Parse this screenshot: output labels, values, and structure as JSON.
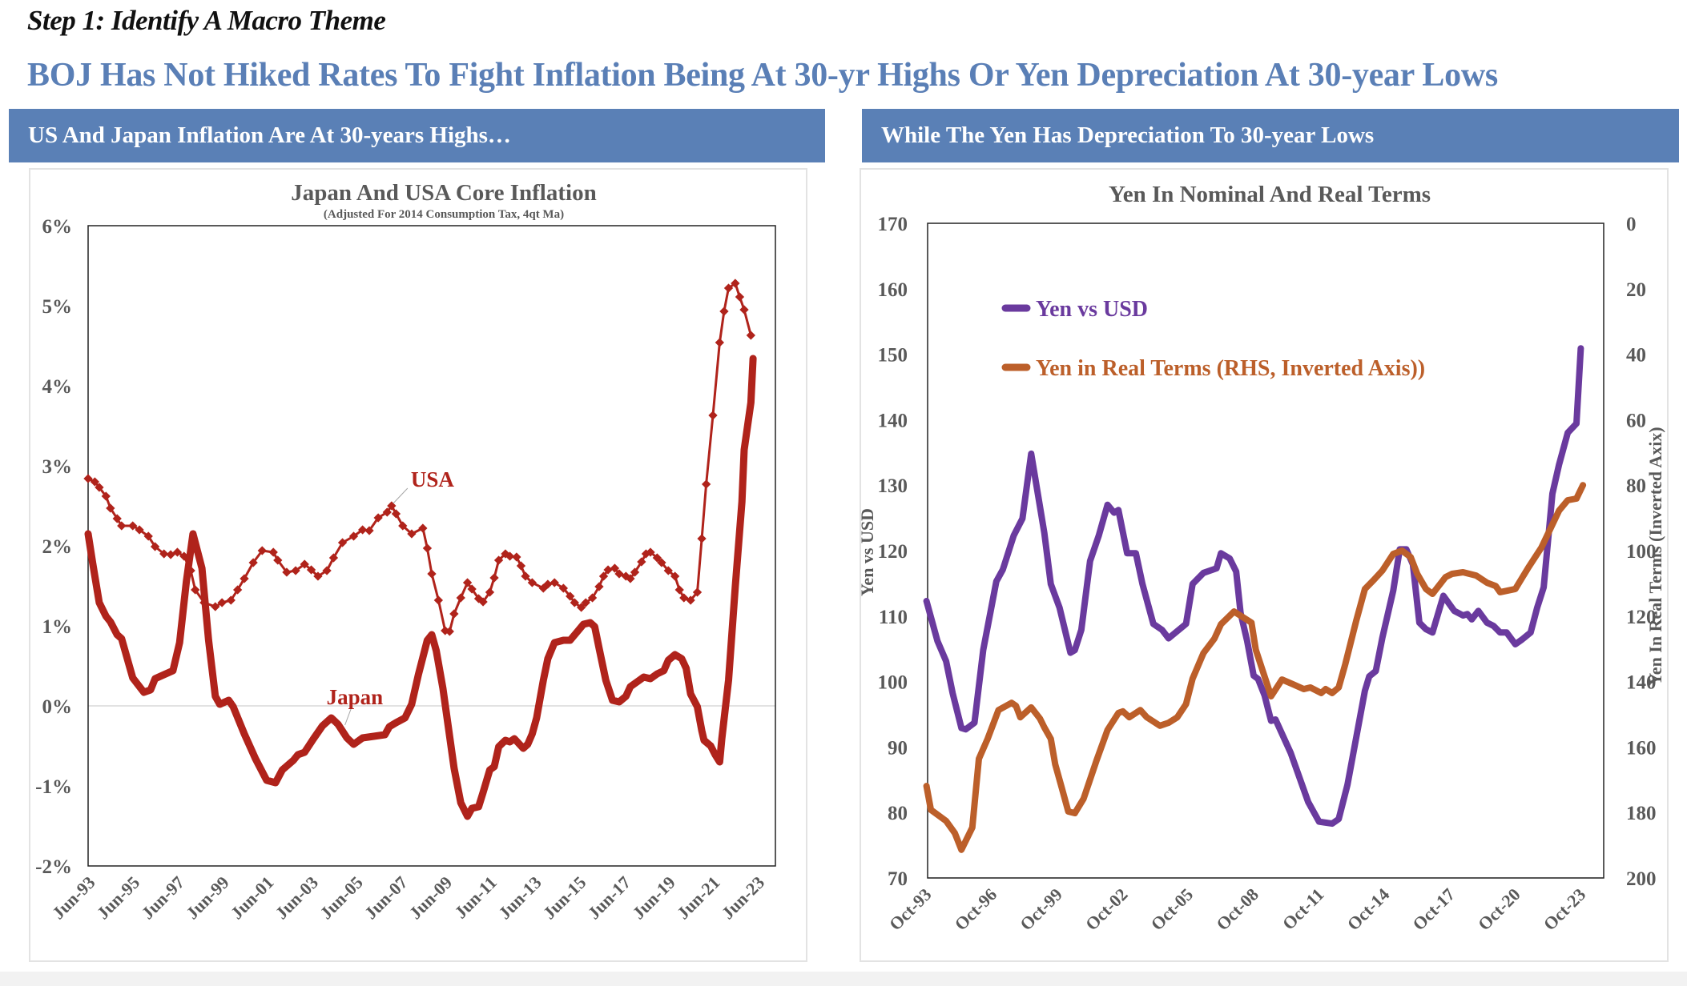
{
  "header": {
    "step_title": "Step 1: Identify A Macro Theme",
    "main_title": "BOJ Has Not Hiked Rates To Fight Inflation Being At 30-yr Highs Or Yen Depreciation At 30-year Lows"
  },
  "panels": {
    "left_banner": "US And Japan Inflation Are At 30-years Highs…",
    "right_banner": "While The Yen Has Depreciation To 30-year Lows"
  },
  "colors": {
    "banner": "#5a80b6",
    "title_blue": "#5a7fb6",
    "inflation_red": "#b0231b",
    "yen_purple": "#6a3a9e",
    "yen_orange": "#bc5f2a",
    "axis_text": "#595959"
  },
  "chart_data": [
    {
      "type": "line",
      "title": "Japan And USA Core Inflation",
      "subtitle": "(Adjusted For 2014 Consumption Tax, 4qt Ma)",
      "xlabel": "",
      "ylabel": "",
      "x_unit": "decimal year",
      "xlim": [
        1993.5,
        2024.3
      ],
      "ylim": [
        -2,
        6
      ],
      "y_ticks": [
        -2,
        -1,
        0,
        1,
        2,
        3,
        4,
        5,
        6
      ],
      "y_tick_labels": [
        "-2%",
        "-1%",
        "0%",
        "1%",
        "2%",
        "3%",
        "4%",
        "5%",
        "6%"
      ],
      "x_ticks": [
        1993.5,
        1995.5,
        1997.5,
        1999.5,
        2001.5,
        2003.5,
        2005.5,
        2007.5,
        2009.5,
        2011.5,
        2013.5,
        2015.5,
        2017.5,
        2019.5,
        2021.5,
        2023.5
      ],
      "x_tick_labels": [
        "Jun-93",
        "Jun-95",
        "Jun-97",
        "Jun-99",
        "Jun-01",
        "Jun-03",
        "Jun-05",
        "Jun-07",
        "Jun-09",
        "Jun-11",
        "Jun-13",
        "Jun-15",
        "Jun-17",
        "Jun-19",
        "Jun-21",
        "Jun-23"
      ],
      "grid": false,
      "zero_line": true,
      "legend": "none",
      "annotations": [
        {
          "text": "USA",
          "series": "USA",
          "at_x": 2007.1
        },
        {
          "text": "Japan",
          "series": "Japan",
          "at_x": 2005.0
        }
      ],
      "series": [
        {
          "name": "USA",
          "color": "#b0231b",
          "marker": "diamond",
          "x": [
            1993.5,
            1993.8,
            1994.0,
            1994.3,
            1994.5,
            1994.8,
            1995.0,
            1995.5,
            1995.8,
            1996.2,
            1996.5,
            1996.9,
            1997.2,
            1997.5,
            1997.8,
            1998.1,
            1998.3,
            1998.7,
            1999.2,
            1999.5,
            1999.9,
            2000.2,
            2000.5,
            2000.9,
            2001.3,
            2001.8,
            2002.0,
            2002.4,
            2002.8,
            2003.2,
            2003.5,
            2003.8,
            2004.2,
            2004.5,
            2004.9,
            2005.4,
            2005.8,
            2006.1,
            2006.5,
            2006.9,
            2007.1,
            2007.3,
            2007.6,
            2008.0,
            2008.5,
            2008.7,
            2008.9,
            2009.2,
            2009.5,
            2009.7,
            2009.9,
            2010.2,
            2010.5,
            2010.7,
            2011.0,
            2011.2,
            2011.5,
            2011.7,
            2011.9,
            2012.2,
            2012.4,
            2012.7,
            2012.9,
            2013.1,
            2013.4,
            2013.9,
            2014.1,
            2014.4,
            2014.8,
            2015.1,
            2015.3,
            2015.6,
            2015.8,
            2016.1,
            2016.4,
            2016.6,
            2016.8,
            2017.1,
            2017.3,
            2017.6,
            2017.8,
            2018.0,
            2018.3,
            2018.5,
            2018.7,
            2019.0,
            2019.2,
            2019.5,
            2019.8,
            2020.0,
            2020.2,
            2020.5,
            2020.8,
            2021.0,
            2021.2,
            2021.5,
            2021.8,
            2022.0,
            2022.2,
            2022.5,
            2022.7,
            2022.9,
            2023.2
          ],
          "values": [
            2.84,
            2.8,
            2.73,
            2.62,
            2.47,
            2.34,
            2.25,
            2.25,
            2.2,
            2.12,
            1.99,
            1.9,
            1.89,
            1.92,
            1.87,
            1.69,
            1.45,
            1.29,
            1.24,
            1.29,
            1.32,
            1.45,
            1.59,
            1.79,
            1.94,
            1.92,
            1.82,
            1.67,
            1.69,
            1.77,
            1.7,
            1.62,
            1.69,
            1.85,
            2.04,
            2.12,
            2.2,
            2.19,
            2.35,
            2.42,
            2.5,
            2.4,
            2.25,
            2.15,
            2.22,
            1.97,
            1.65,
            1.32,
            0.94,
            0.93,
            1.15,
            1.35,
            1.54,
            1.46,
            1.34,
            1.3,
            1.42,
            1.6,
            1.82,
            1.9,
            1.87,
            1.86,
            1.75,
            1.62,
            1.54,
            1.47,
            1.52,
            1.54,
            1.47,
            1.37,
            1.29,
            1.23,
            1.29,
            1.35,
            1.49,
            1.62,
            1.7,
            1.72,
            1.65,
            1.62,
            1.59,
            1.67,
            1.8,
            1.9,
            1.92,
            1.85,
            1.79,
            1.69,
            1.62,
            1.45,
            1.35,
            1.32,
            1.42,
            2.09,
            2.77,
            3.63,
            4.54,
            4.93,
            5.22,
            5.28,
            5.11,
            4.95,
            4.63
          ]
        },
        {
          "name": "Japan",
          "color": "#b0231b",
          "marker": "none",
          "x": [
            1993.5,
            1993.7,
            1994.0,
            1994.3,
            1994.5,
            1994.8,
            1995.0,
            1995.5,
            1996.0,
            1996.3,
            1996.5,
            1996.9,
            1997.3,
            1997.6,
            1997.9,
            1998.2,
            1998.6,
            1998.9,
            1999.2,
            1999.4,
            1999.8,
            2000.0,
            2000.5,
            2001.0,
            2001.5,
            2001.9,
            2002.2,
            2002.7,
            2002.9,
            2003.2,
            2003.6,
            2004.0,
            2004.4,
            2004.7,
            2005.1,
            2005.4,
            2005.8,
            2006.3,
            2006.8,
            2007.0,
            2007.3,
            2007.7,
            2008.0,
            2008.3,
            2008.7,
            2008.9,
            2009.1,
            2009.4,
            2009.5,
            2009.9,
            2010.2,
            2010.5,
            2010.7,
            2011.0,
            2011.2,
            2011.5,
            2011.7,
            2011.9,
            2012.2,
            2012.4,
            2012.6,
            2013.0,
            2013.2,
            2013.4,
            2013.6,
            2013.9,
            2014.1,
            2014.4,
            2014.8,
            2015.1,
            2015.4,
            2015.7,
            2016.0,
            2016.2,
            2016.4,
            2016.7,
            2017.0,
            2017.3,
            2017.6,
            2017.8,
            2018.2,
            2018.4,
            2018.7,
            2019.0,
            2019.3,
            2019.5,
            2019.8,
            2020.1,
            2020.3,
            2020.5,
            2020.8,
            2021.0,
            2021.1,
            2021.4,
            2021.6,
            2021.8,
            2021.9,
            2022.2,
            2022.5,
            2022.8,
            2022.9,
            2023.2,
            2023.3
          ],
          "values": [
            2.15,
            1.79,
            1.29,
            1.12,
            1.05,
            0.89,
            0.84,
            0.35,
            0.17,
            0.2,
            0.34,
            0.39,
            0.44,
            0.79,
            1.55,
            2.15,
            1.72,
            0.82,
            0.12,
            0.02,
            0.07,
            -0.01,
            -0.35,
            -0.66,
            -0.93,
            -0.96,
            -0.8,
            -0.68,
            -0.61,
            -0.58,
            -0.41,
            -0.25,
            -0.15,
            -0.23,
            -0.4,
            -0.48,
            -0.4,
            -0.38,
            -0.36,
            -0.26,
            -0.21,
            -0.15,
            0.02,
            0.39,
            0.82,
            0.89,
            0.69,
            0.22,
            0.02,
            -0.78,
            -1.21,
            -1.38,
            -1.28,
            -1.26,
            -1.08,
            -0.8,
            -0.76,
            -0.51,
            -0.43,
            -0.45,
            -0.41,
            -0.53,
            -0.48,
            -0.35,
            -0.15,
            0.32,
            0.59,
            0.79,
            0.82,
            0.82,
            0.92,
            1.02,
            1.04,
            0.99,
            0.72,
            0.32,
            0.07,
            0.05,
            0.12,
            0.24,
            0.32,
            0.36,
            0.34,
            0.4,
            0.44,
            0.57,
            0.64,
            0.59,
            0.47,
            0.15,
            -0.01,
            -0.31,
            -0.43,
            -0.5,
            -0.61,
            -0.7,
            -0.41,
            0.32,
            1.49,
            2.55,
            3.2,
            3.79,
            4.34
          ]
        }
      ]
    },
    {
      "type": "line",
      "title": "Yen In Nominal And Real Terms",
      "xlabel": "",
      "ylabel": "Yen vs USD",
      "ylabel_right": "Yen In Real Terms (Inverted Axix)",
      "x_unit": "decimal year",
      "xlim": [
        1993.75,
        2024.75
      ],
      "ylim": [
        70,
        170
      ],
      "ylim_right": [
        0,
        200
      ],
      "right_axis_inverted": true,
      "y_ticks": [
        70,
        80,
        90,
        100,
        110,
        120,
        130,
        140,
        150,
        160,
        170
      ],
      "y_tick_labels": [
        "70",
        "80",
        "90",
        "100",
        "110",
        "120",
        "130",
        "140",
        "150",
        "160",
        "170"
      ],
      "y_right_ticks": [
        0,
        20,
        40,
        60,
        80,
        100,
        120,
        140,
        160,
        180,
        200
      ],
      "y_right_tick_labels": [
        "0",
        "20",
        "40",
        "60",
        "80",
        "100",
        "120",
        "140",
        "160",
        "180",
        "200"
      ],
      "x_ticks": [
        1993.75,
        1996.75,
        1999.75,
        2002.75,
        2005.75,
        2008.75,
        2011.75,
        2014.75,
        2017.75,
        2020.75,
        2023.75
      ],
      "x_tick_labels": [
        "Oct-93",
        "Oct-96",
        "Oct-99",
        "Oct-02",
        "Oct-05",
        "Oct-08",
        "Oct-11",
        "Oct-14",
        "Oct-17",
        "Oct-20",
        "Oct-23"
      ],
      "grid": false,
      "legend": "top-left",
      "series": [
        {
          "name": "Yen vs USD",
          "axis": "left",
          "color": "#6a3a9e",
          "x": [
            1993.7,
            1994.2,
            1994.6,
            1994.9,
            1995.3,
            1995.5,
            1995.9,
            1996.3,
            1996.9,
            1997.2,
            1997.7,
            1998.1,
            1998.5,
            1999.1,
            1999.4,
            1999.8,
            2000.3,
            2000.5,
            2000.8,
            2001.2,
            2001.6,
            2002.0,
            2002.3,
            2002.5,
            2002.9,
            2003.3,
            2003.6,
            2004.1,
            2004.5,
            2004.8,
            2005.2,
            2005.6,
            2005.9,
            2006.4,
            2007.0,
            2007.2,
            2007.6,
            2007.9,
            2008.1,
            2008.4,
            2008.7,
            2008.9,
            2009.2,
            2009.5,
            2009.7,
            2010.4,
            2011.2,
            2011.7,
            2012.3,
            2012.6,
            2013.0,
            2013.8,
            2014.0,
            2014.3,
            2014.6,
            2015.1,
            2015.4,
            2015.7,
            2016.0,
            2016.3,
            2016.6,
            2016.9,
            2017.4,
            2017.9,
            2018.3,
            2018.5,
            2018.7,
            2019.0,
            2019.4,
            2019.7,
            2020.0,
            2020.3,
            2020.7,
            2021.0,
            2021.4,
            2021.7,
            2022.0,
            2022.4,
            2022.7,
            2023.1,
            2023.5,
            2023.7
          ],
          "values": [
            112.3,
            106.2,
            103.1,
            98.2,
            92.9,
            92.7,
            93.7,
            104.8,
            115.3,
            117.1,
            122.3,
            124.9,
            134.8,
            122.7,
            114.9,
            111.3,
            104.4,
            104.8,
            107.9,
            118.4,
            122.3,
            127.0,
            125.8,
            126.2,
            119.6,
            119.6,
            114.9,
            108.8,
            107.9,
            106.6,
            107.7,
            108.8,
            114.9,
            116.6,
            117.3,
            119.6,
            118.8,
            116.8,
            110.5,
            106.2,
            100.9,
            100.4,
            97.9,
            94.0,
            94.2,
            89.1,
            81.6,
            78.6,
            78.3,
            79.0,
            84.2,
            98.6,
            100.8,
            101.6,
            106.7,
            113.9,
            120.2,
            120.2,
            117.9,
            109.0,
            108.0,
            107.5,
            113.1,
            110.8,
            110.1,
            110.3,
            109.5,
            110.8,
            109.0,
            108.5,
            107.5,
            107.5,
            105.7,
            106.4,
            107.5,
            111.3,
            114.4,
            128.7,
            133.1,
            138.0,
            139.4,
            150.9
          ]
        },
        {
          "name": "Yen in Real Terms (RHS, Inverted Axis))",
          "axis": "right",
          "color": "#bc5f2a",
          "x": [
            1993.7,
            1993.9,
            1994.6,
            1995.0,
            1995.3,
            1995.8,
            1996.1,
            1996.5,
            1997.0,
            1997.6,
            1997.8,
            1998.0,
            1998.5,
            1998.9,
            1999.1,
            1999.4,
            1999.6,
            1999.9,
            2000.2,
            2000.5,
            2000.9,
            2001.5,
            2002.0,
            2002.5,
            2002.7,
            2003.0,
            2003.5,
            2003.8,
            2004.4,
            2004.8,
            2005.2,
            2005.6,
            2005.9,
            2006.4,
            2006.9,
            2007.2,
            2007.8,
            2008.6,
            2008.8,
            2009.1,
            2009.5,
            2010.0,
            2010.5,
            2011.0,
            2011.3,
            2011.8,
            2012.0,
            2012.3,
            2012.6,
            2012.9,
            2013.4,
            2013.8,
            2014.2,
            2014.6,
            2015.1,
            2015.5,
            2015.9,
            2016.2,
            2016.6,
            2016.9,
            2017.5,
            2017.8,
            2018.3,
            2018.9,
            2019.4,
            2019.8,
            2020.0,
            2020.7,
            2021.3,
            2021.9,
            2022.3,
            2022.7,
            2023.1,
            2023.5,
            2023.8
          ],
          "values": [
            171.9,
            179.2,
            182.6,
            186.3,
            191.4,
            184.6,
            163.6,
            157.5,
            148.7,
            146.5,
            147.4,
            150.9,
            147.9,
            151.3,
            154.0,
            157.5,
            165.3,
            172.4,
            179.7,
            180.2,
            175.8,
            164.0,
            154.8,
            149.6,
            149.1,
            150.9,
            148.7,
            150.9,
            153.5,
            152.6,
            150.9,
            146.9,
            139.1,
            131.3,
            126.9,
            122.5,
            118.6,
            122.0,
            130.3,
            136.4,
            144.5,
            139.4,
            140.8,
            142.3,
            141.8,
            143.5,
            142.3,
            143.5,
            141.8,
            134.7,
            121.5,
            111.7,
            109.0,
            106.1,
            101.0,
            100.0,
            102.0,
            107.1,
            111.7,
            113.2,
            108.1,
            107.1,
            106.6,
            107.6,
            109.8,
            110.8,
            112.7,
            111.7,
            105.1,
            99.0,
            93.4,
            87.8,
            84.6,
            84.1,
            80.0
          ]
        }
      ]
    }
  ]
}
